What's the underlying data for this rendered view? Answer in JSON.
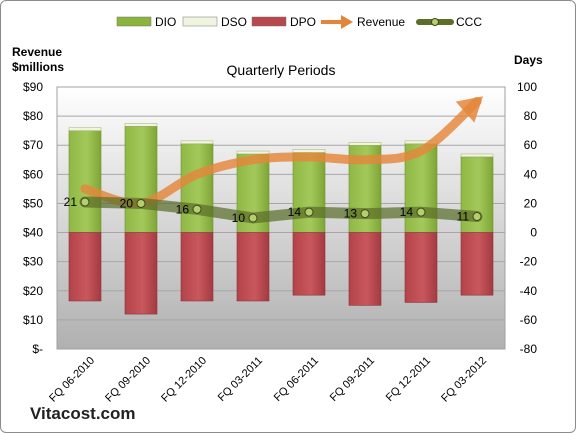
{
  "chart_data": {
    "type": "bar",
    "title": "Quarterly Periods",
    "left_axis_title": [
      "Revenue",
      "$millions"
    ],
    "right_axis_title": "Days",
    "categories": [
      "FQ 06-2010",
      "FQ 09-2010",
      "FQ 12-2010",
      "FQ 03-2011",
      "FQ 06-2011",
      "FQ 09-2011",
      "FQ 12-2011",
      "FQ 03-2012"
    ],
    "left_axis": {
      "min": 0,
      "max": 90,
      "step": 10,
      "tick_labels": [
        "$-",
        "$10",
        "$20",
        "$30",
        "$40",
        "$50",
        "$60",
        "$70",
        "$80",
        "$90"
      ]
    },
    "right_axis": {
      "min": -80,
      "max": 100,
      "step": 20,
      "tick_labels": [
        "-80",
        "-60",
        "-40",
        "-20",
        "0",
        "20",
        "40",
        "60",
        "80",
        "100"
      ]
    },
    "legend": {
      "placement": "top",
      "entries": [
        {
          "name": "DIO",
          "kind": "bar",
          "color": "#8ab43c"
        },
        {
          "name": "DSO",
          "kind": "bar",
          "color": "#f0f5e0"
        },
        {
          "name": "DPO",
          "kind": "bar",
          "color": "#b8474e"
        },
        {
          "name": "Revenue",
          "kind": "arrow",
          "color": "#e4863a"
        },
        {
          "name": "CCC",
          "kind": "line-marker",
          "color": "#5b6e2a"
        }
      ]
    },
    "series": [
      {
        "name": "DIO",
        "axis": "right",
        "values": [
          70,
          73,
          61,
          54,
          55,
          60,
          61,
          52
        ],
        "color": "#8ab43c"
      },
      {
        "name": "DSO",
        "axis": "right",
        "values": [
          2,
          2,
          2,
          2,
          2,
          2,
          2,
          2
        ],
        "color": "#f0f5e0"
      },
      {
        "name": "DPO",
        "axis": "right",
        "values": [
          -47,
          -56,
          -47,
          -47,
          -43,
          -50,
          -48,
          -43
        ],
        "color": "#b8474e"
      },
      {
        "name": "Revenue",
        "axis": "left",
        "values": [
          55,
          50,
          60,
          65,
          66,
          65,
          68,
          85
        ],
        "color": "#e4863a"
      },
      {
        "name": "CCC",
        "axis": "right",
        "values": [
          21,
          20,
          16,
          10,
          14,
          13,
          14,
          11
        ],
        "labels": [
          "21",
          "20",
          "16",
          "10",
          "14",
          "13",
          "14",
          "11"
        ],
        "color": "#5b6e2a"
      }
    ],
    "grid": true,
    "plot_background": "gradient-gray"
  },
  "branding": {
    "name": "Vitacost.com"
  }
}
